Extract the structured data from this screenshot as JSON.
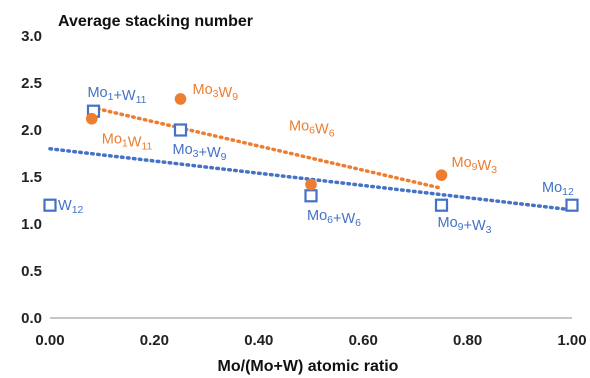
{
  "chart_data": {
    "type": "scatter",
    "title": "Average stacking number",
    "xlabel": "Mo/(Mo+W) atomic ratio",
    "ylabel": "",
    "xlim": [
      0,
      1
    ],
    "ylim": [
      0,
      3
    ],
    "x_ticks": [
      "0.00",
      "0.20",
      "0.40",
      "0.60",
      "0.80",
      "1.00"
    ],
    "y_ticks": [
      "0.0",
      "0.5",
      "1.0",
      "1.5",
      "2.0",
      "2.5",
      "3.0"
    ],
    "grid": "none",
    "legend": "none",
    "series": [
      {
        "color": "#4472c4",
        "marker": "hollow-square",
        "points": [
          {
            "x": 0.0,
            "y": 1.2,
            "label": "W",
            "sub": "12"
          },
          {
            "x": 0.0833,
            "y": 2.2,
            "label": "Mo1+W11",
            "parts": [
              [
                "Mo",
                "1"
              ],
              [
                "+W",
                "11"
              ]
            ]
          },
          {
            "x": 0.25,
            "y": 2.0,
            "label": "Mo3+W9",
            "parts": [
              [
                "Mo",
                "3"
              ],
              [
                "+W",
                "9"
              ]
            ]
          },
          {
            "x": 0.5,
            "y": 1.3,
            "label": "Mo6+W6",
            "parts": [
              [
                "Mo",
                "6"
              ],
              [
                "+W",
                "6"
              ]
            ]
          },
          {
            "x": 0.75,
            "y": 1.2,
            "label": "Mo9+W3",
            "parts": [
              [
                "Mo",
                "9"
              ],
              [
                "+W",
                "3"
              ]
            ]
          },
          {
            "x": 1.0,
            "y": 1.2,
            "label": "Mo12",
            "parts": [
              [
                "Mo",
                "12"
              ]
            ]
          }
        ],
        "trendline": {
          "x": [
            0,
            1
          ],
          "y": [
            1.8,
            1.15
          ]
        }
      },
      {
        "color": "#ed7d31",
        "marker": "filled-circle",
        "points": [
          {
            "x": 0.08,
            "y": 2.12,
            "label": "Mo1W11",
            "parts": [
              [
                "Mo",
                "1"
              ],
              [
                "W",
                "11"
              ]
            ]
          },
          {
            "x": 0.25,
            "y": 2.33,
            "label": "Mo3W9",
            "parts": [
              [
                "Mo",
                "3"
              ],
              [
                "W",
                "9"
              ]
            ]
          },
          {
            "x": 0.5,
            "y": 1.42,
            "label": "Mo6W6",
            "parts": [
              [
                "Mo",
                "6"
              ],
              [
                "W",
                "6"
              ]
            ]
          },
          {
            "x": 0.75,
            "y": 1.52,
            "label": "Mo9W3",
            "parts": [
              [
                "Mo",
                "9"
              ],
              [
                "W",
                "3"
              ]
            ]
          }
        ],
        "trendline": {
          "x": [
            0.08,
            0.75
          ],
          "y": [
            2.24,
            1.38
          ]
        }
      }
    ]
  }
}
